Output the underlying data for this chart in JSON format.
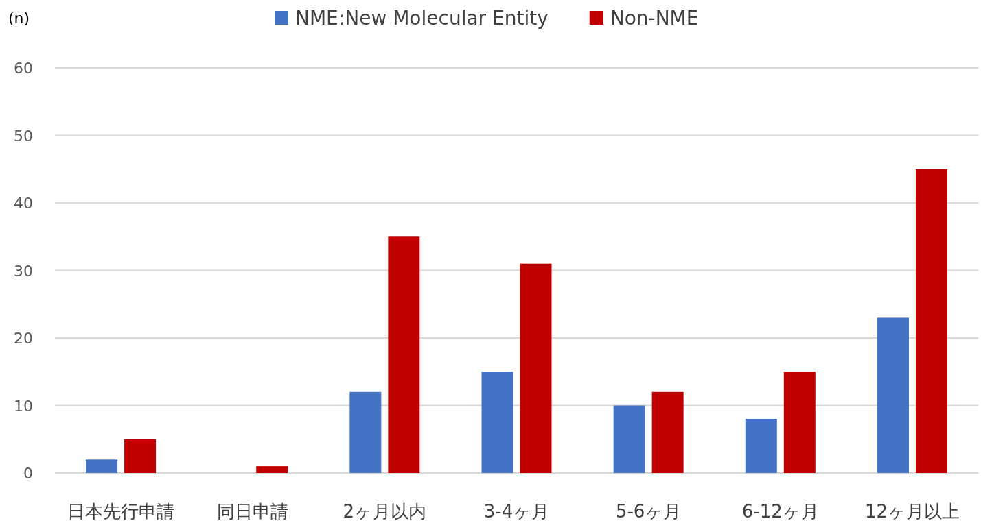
{
  "chart_data": {
    "type": "bar",
    "ylabel": "(n)",
    "categories": [
      "日本先行申請",
      "同日申請",
      "2ヶ月以内",
      "3-4ヶ月",
      "5-6ヶ月",
      "6-12ヶ月",
      "12ヶ月以上"
    ],
    "series": [
      {
        "name": "NME:New Molecular Entity",
        "color": "#4472c4",
        "values": [
          2,
          0,
          12,
          15,
          10,
          8,
          23
        ]
      },
      {
        "name": "Non-NME",
        "color": "#c00000",
        "values": [
          5,
          1,
          35,
          31,
          12,
          15,
          45
        ]
      }
    ],
    "ylim": [
      0,
      60
    ],
    "yticks": [
      0,
      10,
      20,
      30,
      40,
      50,
      60
    ],
    "grid": "y",
    "legend": "top"
  }
}
